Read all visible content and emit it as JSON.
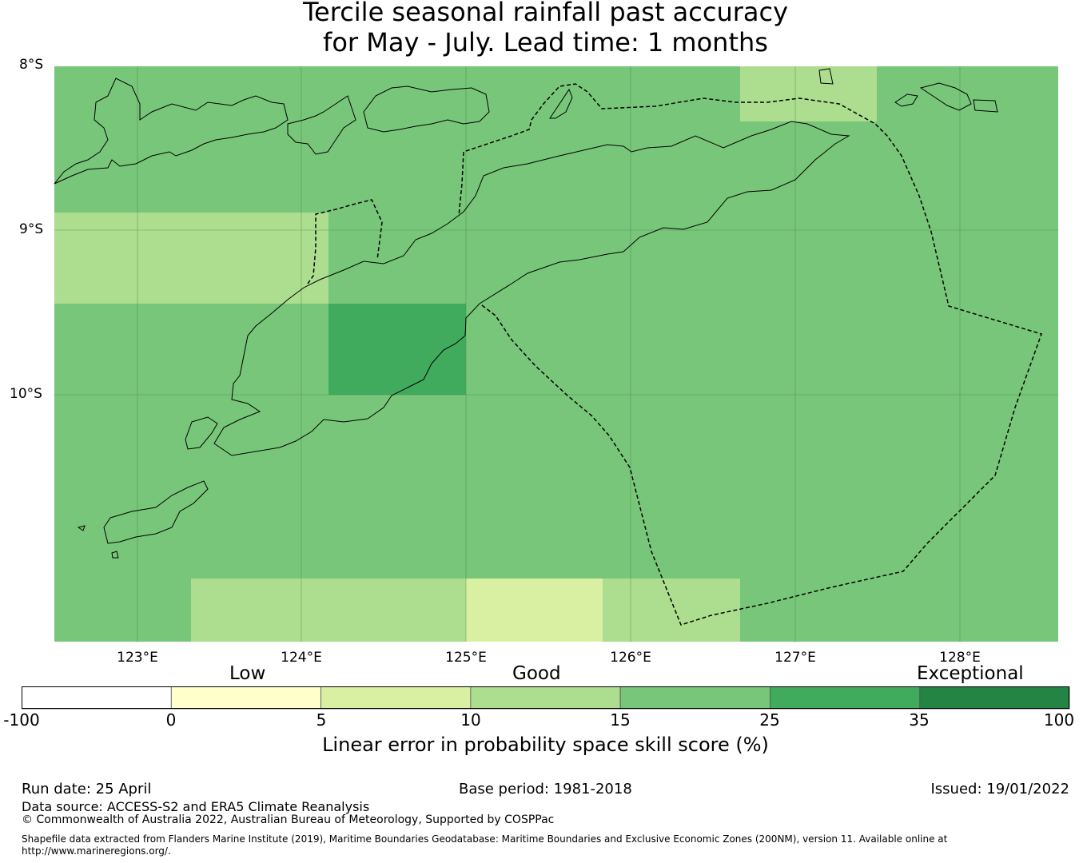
{
  "title": {
    "line1": "Tercile seasonal rainfall past accuracy",
    "line2": "for May - July. Lead time: 1 months"
  },
  "map": {
    "latitude_labels": [
      "8°S",
      "9°S",
      "10°S"
    ],
    "longitude_labels": [
      "123°E",
      "124°E",
      "125°E",
      "126°E",
      "127°E",
      "128°E"
    ],
    "colors": {
      "ocean_background": "#78c679",
      "high_skill": "#41ab5d",
      "mid_skill": "#addd8e",
      "low_skill": "#d9f0a3"
    }
  },
  "colorbar": {
    "categories": [
      "Low",
      "Good",
      "Exceptional"
    ],
    "ticks": [
      "-100",
      "0",
      "5",
      "10",
      "15",
      "25",
      "35",
      "100"
    ],
    "colors": [
      "#ffffff",
      "#ffffcc",
      "#d9f0a3",
      "#addd8e",
      "#78c679",
      "#41ab5d",
      "#238443"
    ],
    "label": "Linear error in probability space skill score (%)"
  },
  "footer": {
    "run_date": "Run date: 25 April",
    "base_period": "Base period: 1981-2018",
    "issued": "Issued: 19/01/2022",
    "data_source": "Data source: ACCESS-S2 and ERA5 Climate Reanalysis",
    "copyright": "© Commonwealth of Australia 2022, Australian Bureau of Meteorology, Supported by COSPPac",
    "shapefile_line1": "Shapefile data extracted from Flanders Marine Institute (2019), Maritime Boundaries Geodatabase: Maritime Boundaries and Exclusive Economic Zones (200NM), version 11. Available online at",
    "shapefile_line2": "http://www.marineregions.org/."
  }
}
